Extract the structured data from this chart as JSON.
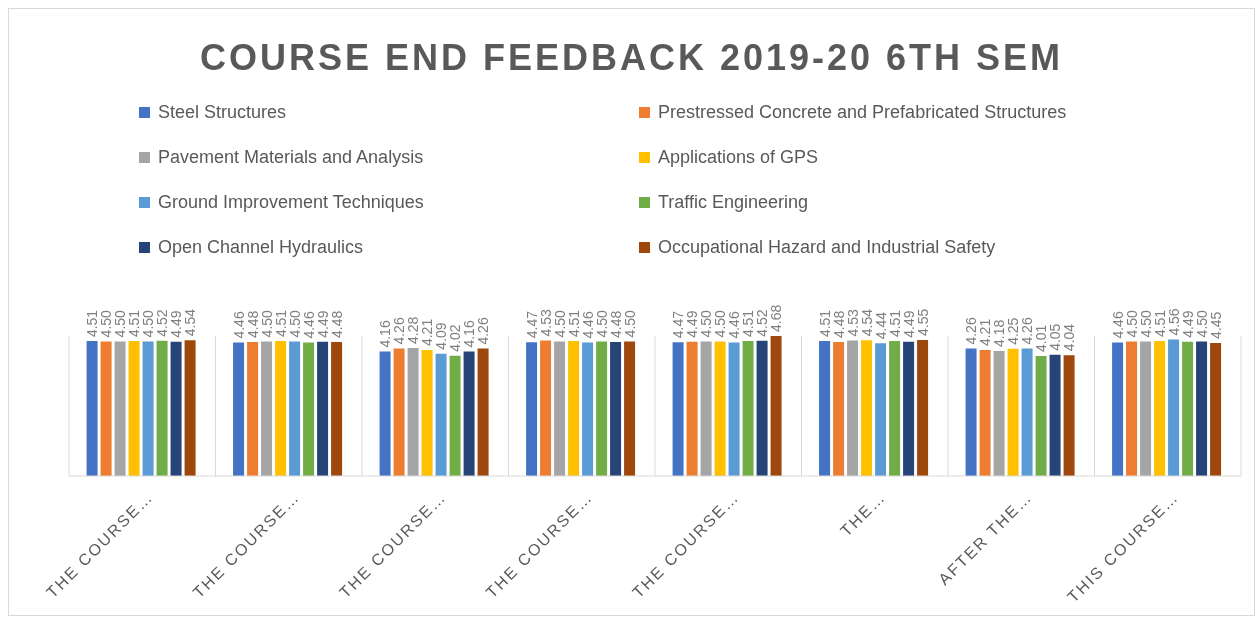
{
  "chart_data": {
    "type": "bar",
    "title": "COURSE END FEEDBACK 2019-20 6TH SEM",
    "categories": [
      "THE COURSE…",
      "THE COURSE…",
      "THE COURSE…",
      "THE COURSE…",
      "THE COURSE…",
      "THE…",
      "AFTER THE…",
      "THIS COURSE…"
    ],
    "series": [
      {
        "name": "Steel Structures",
        "color": "#4472c4",
        "values": [
          4.51,
          4.46,
          4.16,
          4.47,
          4.47,
          4.51,
          4.26,
          4.46
        ],
        "value_labels": [
          "4.51",
          "4.46",
          "4.16",
          "4.47",
          "4.47",
          "4.51",
          "4.26",
          "4.46"
        ]
      },
      {
        "name": "Prestressed Concrete and Prefabricated Structures",
        "color": "#ed7d31",
        "values": [
          4.5,
          4.48,
          4.26,
          4.53,
          4.49,
          4.48,
          4.21,
          4.5
        ],
        "value_labels": [
          "4.50",
          "4.48",
          "4.26",
          "4.53",
          "4.49",
          "4.48",
          "4.21",
          "4.50"
        ]
      },
      {
        "name": "Pavement Materials and Analysis",
        "color": "#a5a5a5",
        "values": [
          4.5,
          4.5,
          4.28,
          4.5,
          4.5,
          4.53,
          4.18,
          4.5
        ],
        "value_labels": [
          "4.50",
          "4.50",
          "4.28",
          "4.50",
          "4.50",
          "4.53",
          "4.18",
          "4.50"
        ]
      },
      {
        "name": "Applications of GPS",
        "color": "#ffc000",
        "values": [
          4.51,
          4.51,
          4.21,
          4.51,
          4.5,
          4.54,
          4.25,
          4.51
        ],
        "value_labels": [
          "4.51",
          "4.51",
          "4.21",
          "4.51",
          "4.50",
          "4.54",
          "4.25",
          "4.51"
        ]
      },
      {
        "name": "Ground Improvement Techniques",
        "color": "#5b9bd5",
        "values": [
          4.5,
          4.5,
          4.09,
          4.46,
          4.46,
          4.44,
          4.26,
          4.56
        ],
        "value_labels": [
          "4.50",
          "4.50",
          "4.09",
          "4.46",
          "4.46",
          "4.44",
          "4.26",
          "4.56"
        ]
      },
      {
        "name": "Traffic Engineering",
        "color": "#70ad47",
        "values": [
          4.52,
          4.46,
          4.02,
          4.5,
          4.51,
          4.51,
          4.01,
          4.49
        ],
        "value_labels": [
          "4.52",
          "4.46",
          "4.02",
          "4.50",
          "4.51",
          "4.51",
          "4.01",
          "4.49"
        ]
      },
      {
        "name": "Open Channel Hydraulics",
        "color": "#264478",
        "values": [
          4.49,
          4.49,
          4.16,
          4.48,
          4.52,
          4.49,
          4.05,
          4.5
        ],
        "value_labels": [
          "4.49",
          "4.49",
          "4.16",
          "4.48",
          "4.52",
          "4.49",
          "4.05",
          "4.50"
        ]
      },
      {
        "name": "Occupational Hazard and Industrial Safety",
        "color": "#9e480e",
        "values": [
          4.54,
          4.48,
          4.26,
          4.5,
          4.68,
          4.55,
          4.04,
          4.45
        ],
        "value_labels": [
          "4.54",
          "4.48",
          "4.26",
          "4.50",
          "4.68",
          "4.55",
          "4.04",
          "4.45"
        ]
      }
    ],
    "legend": "top",
    "grid": "x"
  }
}
